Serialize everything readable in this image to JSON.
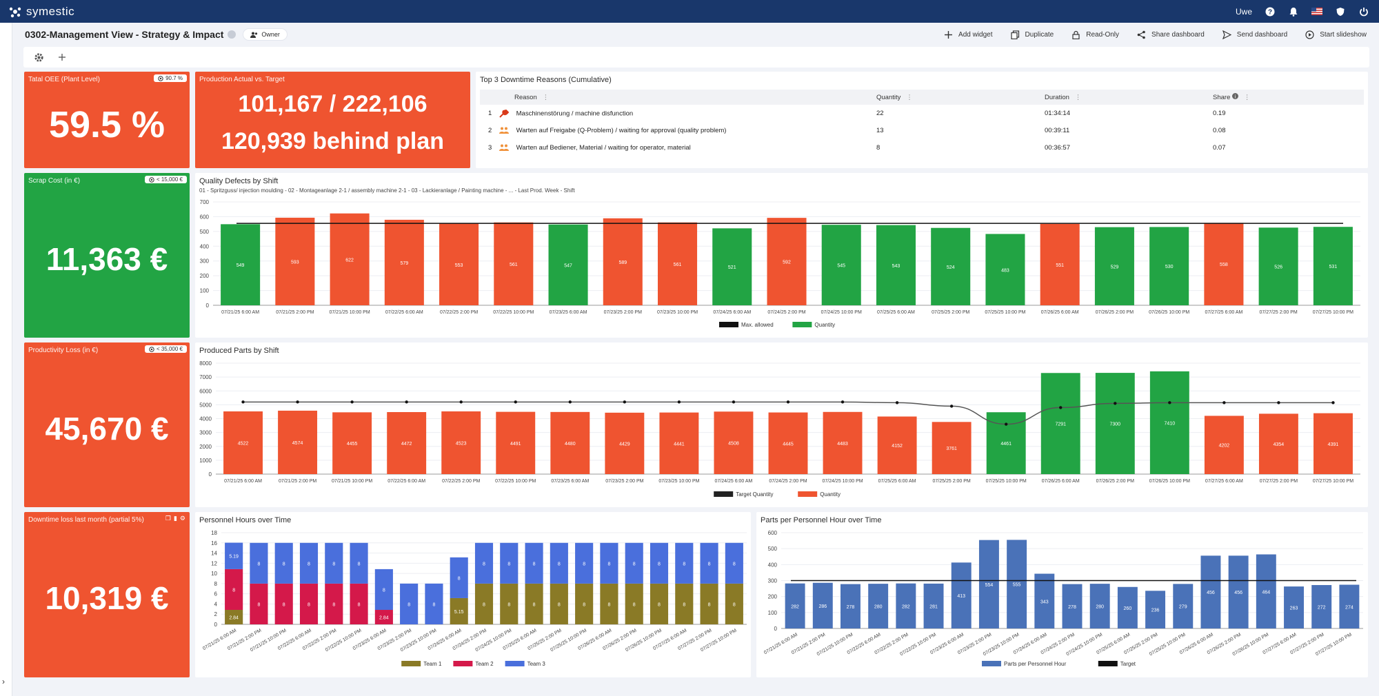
{
  "app": {
    "name": "symestic",
    "user": "Uwe"
  },
  "header": {
    "title": "0302-Management View - Strategy & Impact",
    "owner_label": "Owner"
  },
  "actions": [
    {
      "label": "Add widget",
      "icon": "plus-icon"
    },
    {
      "label": "Duplicate",
      "icon": "copy-icon"
    },
    {
      "label": "Read-Only",
      "icon": "lock-icon"
    },
    {
      "label": "Share dashboard",
      "icon": "share-icon"
    },
    {
      "label": "Send dashboard",
      "icon": "send-icon"
    },
    {
      "label": "Start slideshow",
      "icon": "play-icon"
    }
  ],
  "kpis": {
    "oee": {
      "title": "Tatal OEE (Plant Level)",
      "badge": "90.7 %",
      "value": "59.5 %"
    },
    "production": {
      "title": "Production Actual vs. Target",
      "line1": "101,167 / 222,106",
      "line2": "120,939 behind plan"
    },
    "scrap": {
      "title": "Scrap Cost (in €)",
      "badge": "< 15,000 €",
      "value": "11,363 €"
    },
    "productivity": {
      "title": "Productivity Loss (in €)",
      "badge": "< 35,000 €",
      "value": "45,670 €"
    },
    "downtime": {
      "title": "Downtime loss last month (partial 5%)",
      "value": "10,319 €"
    }
  },
  "downtime_table": {
    "title": "Top 3 Downtime Reasons (Cumulative)",
    "columns": [
      "Reason",
      "Quantity",
      "Duration",
      "Share"
    ],
    "rows": [
      {
        "n": "1",
        "icon": "wrench-icon",
        "reason": "Maschinenstörung / machine disfunction",
        "quantity": "22",
        "duration": "01:34:14",
        "share": "0.19"
      },
      {
        "n": "2",
        "icon": "people-icon",
        "reason": "Warten auf Freigabe (Q-Problem) / waiting for approval (quality problem)",
        "quantity": "13",
        "duration": "00:39:11",
        "share": "0.08"
      },
      {
        "n": "3",
        "icon": "people-icon",
        "reason": "Warten auf Bediener, Material / waiting for operator, material",
        "quantity": "8",
        "duration": "00:36:57",
        "share": "0.07"
      }
    ]
  },
  "colors": {
    "red": "#ef5430",
    "green": "#22a444",
    "blue": "#4a72b8",
    "team1": "#8a7a26",
    "team2": "#d4194a",
    "team3": "#4a6fdc",
    "topbar": "#19376b"
  },
  "chart_data": [
    {
      "id": "quality",
      "type": "bar",
      "title": "Quality Defects by Shift",
      "subtitle": "01 - Spritzguss/ injection moulding - 02 - Montageanlage 2-1 / assembly machine 2-1 - 03 - Lackieranlage / Painting machine - ... - Last Prod. Week - Shift",
      "categories": [
        "07/21/25 6:00 AM",
        "07/21/25 2:00 PM",
        "07/21/25 10:00 PM",
        "07/22/25 6:00 AM",
        "07/22/25 2:00 PM",
        "07/22/25 10:00 PM",
        "07/23/25 6:00 AM",
        "07/23/25 2:00 PM",
        "07/23/25 10:00 PM",
        "07/24/25 6:00 AM",
        "07/24/25 2:00 PM",
        "07/24/25 10:00 PM",
        "07/25/25 6:00 AM",
        "07/25/25 2:00 PM",
        "07/25/25 10:00 PM",
        "07/26/25 6:00 AM",
        "07/26/25 2:00 PM",
        "07/26/25 10:00 PM",
        "07/27/25 6:00 AM",
        "07/27/25 2:00 PM",
        "07/27/25 10:00 PM"
      ],
      "values": [
        549,
        593,
        622,
        579,
        553,
        561,
        547,
        589,
        561,
        521,
        592,
        545,
        543,
        524,
        483,
        551,
        529,
        530,
        558,
        526,
        531
      ],
      "bar_colors": [
        "green",
        "red",
        "red",
        "red",
        "red",
        "red",
        "green",
        "red",
        "red",
        "green",
        "red",
        "green",
        "green",
        "green",
        "green",
        "red",
        "green",
        "green",
        "red",
        "green",
        "green"
      ],
      "threshold": 555,
      "yticks": [
        0,
        100,
        200,
        300,
        400,
        500,
        600,
        700
      ],
      "ylim": [
        0,
        700
      ],
      "legend": [
        "Max. allowed",
        "Quantity"
      ]
    },
    {
      "id": "produced",
      "type": "bar",
      "title": "Produced Parts by Shift",
      "categories": [
        "07/21/25 6:00 AM",
        "07/21/25 2:00 PM",
        "07/21/25 10:00 PM",
        "07/22/25 6:00 AM",
        "07/22/25 2:00 PM",
        "07/22/25 10:00 PM",
        "07/23/25 6:00 AM",
        "07/23/25 2:00 PM",
        "07/23/25 10:00 PM",
        "07/24/25 6:00 AM",
        "07/24/25 2:00 PM",
        "07/24/25 10:00 PM",
        "07/25/25 6:00 AM",
        "07/25/25 2:00 PM",
        "07/25/25 10:00 PM",
        "07/26/25 6:00 AM",
        "07/26/25 2:00 PM",
        "07/26/25 10:00 PM",
        "07/27/25 6:00 AM",
        "07/27/25 2:00 PM",
        "07/27/25 10:00 PM"
      ],
      "values": [
        4522,
        4574,
        4455,
        4472,
        4523,
        4491,
        4480,
        4429,
        4441,
        4508,
        4445,
        4483,
        4152,
        3761,
        4461,
        7291,
        7300,
        7410,
        4202,
        4354,
        4391
      ],
      "bar_colors": [
        "red",
        "red",
        "red",
        "red",
        "red",
        "red",
        "red",
        "red",
        "red",
        "red",
        "red",
        "red",
        "red",
        "red",
        "green",
        "green",
        "green",
        "green",
        "red",
        "red",
        "red"
      ],
      "target": [
        5200,
        5200,
        5200,
        5200,
        5200,
        5200,
        5200,
        5200,
        5200,
        5200,
        5200,
        5200,
        5150,
        4900,
        3600,
        4800,
        5100,
        5150,
        5150,
        5150,
        5150
      ],
      "yticks": [
        0,
        1000,
        2000,
        3000,
        4000,
        5000,
        6000,
        7000,
        8000
      ],
      "ylim": [
        0,
        8000
      ],
      "legend": [
        "Target Quantity",
        "Quantity"
      ]
    },
    {
      "id": "personnel",
      "type": "bar",
      "stacked": true,
      "title": "Personnel Hours over Time",
      "categories": [
        "07/21/25 6:00 AM",
        "07/21/25 2:00 PM",
        "07/21/25 10:00 PM",
        "07/22/25 6:00 AM",
        "07/22/25 2:00 PM",
        "07/22/25 10:00 PM",
        "07/23/25 6:00 AM",
        "07/23/25 2:00 PM",
        "07/23/25 10:00 PM",
        "07/24/25 6:00 AM",
        "07/24/25 2:00 PM",
        "07/24/25 10:00 PM",
        "07/25/25 6:00 AM",
        "07/25/25 2:00 PM",
        "07/25/25 10:00 PM",
        "07/26/25 6:00 AM",
        "07/26/25 2:00 PM",
        "07/26/25 10:00 PM",
        "07/27/25 6:00 AM",
        "07/27/25 2:00 PM",
        "07/27/25 10:00 PM"
      ],
      "series": [
        {
          "name": "Team 1",
          "color": "team1",
          "values": [
            2.84,
            0,
            0,
            0,
            0,
            0,
            0,
            0,
            0,
            5.15,
            8,
            8,
            8,
            8,
            8,
            8,
            8,
            8,
            8,
            8,
            8
          ],
          "labels": [
            "2.84",
            "",
            "",
            "",
            "",
            "",
            "",
            "",
            "",
            "5.15",
            "8",
            "8",
            "8",
            "8",
            "8",
            "8",
            "8",
            "8",
            "8",
            "8",
            "8"
          ]
        },
        {
          "name": "Team 2",
          "color": "team2",
          "values": [
            8,
            8,
            8,
            8,
            8,
            8,
            2.84,
            0,
            0,
            0,
            0,
            0,
            0,
            0,
            0,
            0,
            0,
            0,
            0,
            0,
            0
          ],
          "labels": [
            "8",
            "8",
            "8",
            "8",
            "8",
            "8",
            "2.84",
            "",
            "",
            "",
            "",
            "",
            "",
            "",
            "",
            "",
            "",
            "",
            "",
            "",
            ""
          ]
        },
        {
          "name": "Team 3",
          "color": "team3",
          "values": [
            5.19,
            8,
            8,
            8,
            8,
            8,
            8,
            8,
            8,
            8,
            8,
            8,
            8,
            8,
            8,
            8,
            8,
            8,
            8,
            8,
            8
          ],
          "labels": [
            "5.19",
            "8",
            "8",
            "8",
            "8",
            "8",
            "8",
            "8",
            "8",
            "8",
            "8",
            "8",
            "8",
            "8",
            "8",
            "8",
            "8",
            "8",
            "8",
            "8",
            "8"
          ]
        }
      ],
      "yticks": [
        0,
        2,
        4,
        6,
        8,
        10,
        12,
        14,
        16,
        18
      ],
      "ylim": [
        0,
        18
      ]
    },
    {
      "id": "parts_per_hour",
      "type": "bar",
      "title": "Parts per Personnel Hour over Time",
      "categories": [
        "07/21/25 6:00 AM",
        "07/21/25 2:00 PM",
        "07/21/25 10:00 PM",
        "07/22/25 6:00 AM",
        "07/22/25 2:00 PM",
        "07/22/25 10:00 PM",
        "07/23/25 6:00 AM",
        "07/23/25 2:00 PM",
        "07/23/25 10:00 PM",
        "07/24/25 6:00 AM",
        "07/24/25 2:00 PM",
        "07/24/25 10:00 PM",
        "07/25/25 6:00 AM",
        "07/25/25 2:00 PM",
        "07/25/25 10:00 PM",
        "07/26/25 6:00 AM",
        "07/26/25 2:00 PM",
        "07/26/25 10:00 PM",
        "07/27/25 6:00 AM",
        "07/27/25 2:00 PM",
        "07/27/25 10:00 PM"
      ],
      "values": [
        282,
        286,
        278,
        280,
        282,
        281,
        413,
        554,
        555,
        343,
        278,
        280,
        260,
        236,
        279,
        456,
        456,
        464,
        263,
        272,
        274
      ],
      "target": 300,
      "yticks": [
        0,
        100,
        200,
        300,
        400,
        500,
        600
      ],
      "ylim": [
        0,
        600
      ],
      "legend": [
        "Parts per Personnel Hour",
        "Target"
      ]
    }
  ]
}
